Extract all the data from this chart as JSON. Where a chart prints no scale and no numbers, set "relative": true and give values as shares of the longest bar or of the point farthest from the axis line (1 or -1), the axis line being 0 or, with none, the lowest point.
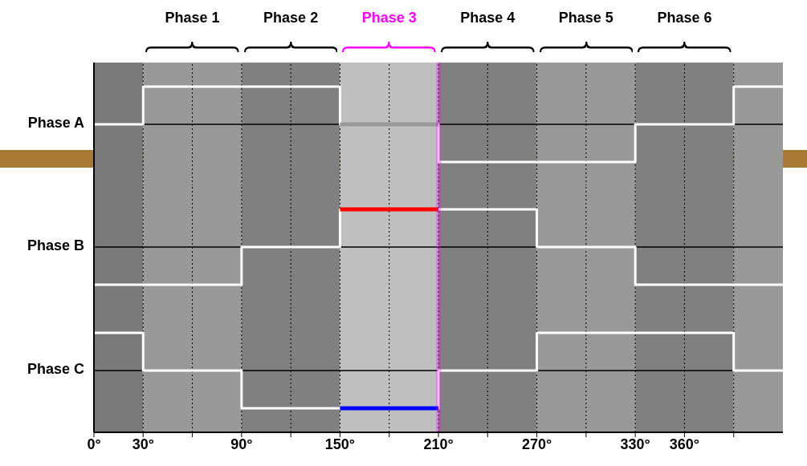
{
  "chart_data": [
    {
      "type": "step",
      "ylabel": "Phase A",
      "relative": true,
      "xlim": [
        0,
        420
      ],
      "xticks": [
        0,
        30,
        60,
        90,
        120,
        150,
        180,
        210,
        240,
        270,
        300,
        330,
        360,
        390
      ],
      "tick_labels": false,
      "grid": "x",
      "legend": false,
      "series": [
        {
          "color": "#ffffff",
          "x": [
            0,
            30,
            150,
            210,
            330,
            390,
            420
          ],
          "values": [
            0,
            1,
            0,
            -1,
            0,
            1,
            1
          ]
        },
        {
          "color": "#999999",
          "x": [
            150,
            210
          ],
          "values": [
            0,
            0
          ]
        }
      ],
      "bands": [
        {
          "axis": "x",
          "from": 0,
          "to": 30,
          "label": null,
          "color": "#7a7a7a"
        },
        {
          "axis": "x",
          "from": 30,
          "to": 90,
          "label": "Phase 1",
          "color": "#999999"
        },
        {
          "axis": "x",
          "from": 90,
          "to": 150,
          "label": "Phase 2",
          "color": "#808080"
        },
        {
          "axis": "x",
          "from": 150,
          "to": 210,
          "label": "Phase 3",
          "color": "#c0c0c0"
        },
        {
          "axis": "x",
          "from": 210,
          "to": 270,
          "label": "Phase 4",
          "color": "#808080"
        },
        {
          "axis": "x",
          "from": 270,
          "to": 330,
          "label": "Phase 5",
          "color": "#999999"
        },
        {
          "axis": "x",
          "from": 330,
          "to": 390,
          "label": "Phase 6",
          "color": "#808080"
        },
        {
          "axis": "x",
          "from": 390,
          "to": 420,
          "label": null,
          "color": "#999999"
        }
      ],
      "ref_lines": [
        {
          "axis": "x",
          "value": 210,
          "label": null,
          "color": "#ff00ff"
        }
      ]
    },
    {
      "type": "step",
      "ylabel": "Phase B",
      "relative": true,
      "xlim": [
        0,
        420
      ],
      "xticks": [
        0,
        30,
        60,
        90,
        120,
        150,
        180,
        210,
        240,
        270,
        300,
        330,
        360,
        390
      ],
      "tick_labels": false,
      "grid": "x",
      "legend": false,
      "series": [
        {
          "color": "#ffffff",
          "x": [
            0,
            90,
            150,
            270,
            330,
            420
          ],
          "values": [
            -1,
            0,
            1,
            0,
            -1,
            -1
          ]
        },
        {
          "color": "#ff0000",
          "x": [
            150,
            210
          ],
          "values": [
            1,
            1
          ]
        }
      ],
      "bands": [
        {
          "axis": "x",
          "from": 0,
          "to": 30,
          "label": null,
          "color": "#7a7a7a"
        },
        {
          "axis": "x",
          "from": 30,
          "to": 90,
          "label": null,
          "color": "#999999"
        },
        {
          "axis": "x",
          "from": 90,
          "to": 150,
          "label": null,
          "color": "#808080"
        },
        {
          "axis": "x",
          "from": 150,
          "to": 210,
          "label": null,
          "color": "#c0c0c0"
        },
        {
          "axis": "x",
          "from": 210,
          "to": 270,
          "label": null,
          "color": "#808080"
        },
        {
          "axis": "x",
          "from": 270,
          "to": 330,
          "label": null,
          "color": "#999999"
        },
        {
          "axis": "x",
          "from": 330,
          "to": 390,
          "label": null,
          "color": "#808080"
        },
        {
          "axis": "x",
          "from": 390,
          "to": 420,
          "label": null,
          "color": "#999999"
        }
      ],
      "ref_lines": [
        {
          "axis": "x",
          "value": 210,
          "label": null,
          "color": "#ff00ff"
        }
      ]
    },
    {
      "type": "step",
      "ylabel": "Phase C",
      "relative": true,
      "xlim": [
        0,
        420
      ],
      "xticks": [
        {
          "value": 0,
          "label": "0°"
        },
        {
          "value": 30,
          "label": "30°"
        },
        {
          "value": 60,
          "label": null
        },
        {
          "value": 90,
          "label": "90°"
        },
        {
          "value": 120,
          "label": null
        },
        {
          "value": 150,
          "label": "150°"
        },
        {
          "value": 180,
          "label": null
        },
        {
          "value": 210,
          "label": "210°"
        },
        {
          "value": 240,
          "label": null
        },
        {
          "value": 270,
          "label": "270°"
        },
        {
          "value": 300,
          "label": null
        },
        {
          "value": 330,
          "label": "330°"
        },
        {
          "value": 360,
          "label": "360°"
        },
        {
          "value": 390,
          "label": null
        }
      ],
      "tick_labels": "x",
      "grid": "x",
      "legend": false,
      "series": [
        {
          "color": "#ffffff",
          "x": [
            0,
            30,
            90,
            210,
            270,
            390,
            420
          ],
          "values": [
            1,
            0,
            -1,
            0,
            1,
            0,
            0
          ]
        },
        {
          "color": "#0000ff",
          "x": [
            150,
            210
          ],
          "values": [
            -1,
            -1
          ]
        }
      ],
      "bands": [
        {
          "axis": "x",
          "from": 0,
          "to": 30,
          "label": null,
          "color": "#7a7a7a"
        },
        {
          "axis": "x",
          "from": 30,
          "to": 90,
          "label": null,
          "color": "#999999"
        },
        {
          "axis": "x",
          "from": 90,
          "to": 150,
          "label": null,
          "color": "#808080"
        },
        {
          "axis": "x",
          "from": 150,
          "to": 210,
          "label": null,
          "color": "#c0c0c0"
        },
        {
          "axis": "x",
          "from": 210,
          "to": 270,
          "label": null,
          "color": "#808080"
        },
        {
          "axis": "x",
          "from": 270,
          "to": 330,
          "label": null,
          "color": "#999999"
        },
        {
          "axis": "x",
          "from": 330,
          "to": 390,
          "label": null,
          "color": "#808080"
        },
        {
          "axis": "x",
          "from": 390,
          "to": 420,
          "label": null,
          "color": "#999999"
        }
      ],
      "ref_lines": [
        {
          "axis": "x",
          "value": 210,
          "label": null,
          "color": "#ff00ff"
        }
      ]
    }
  ]
}
